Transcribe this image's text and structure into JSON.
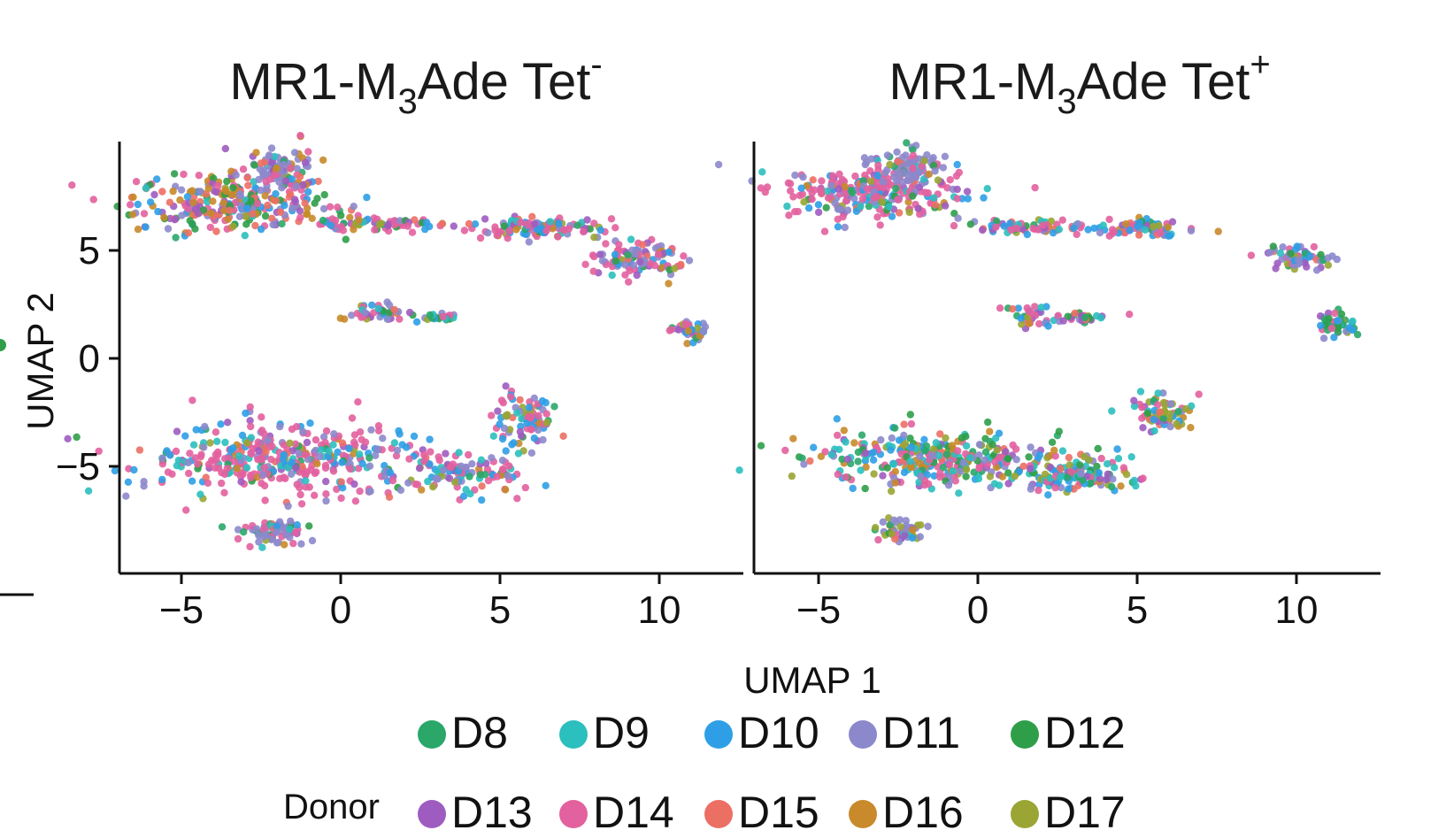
{
  "chart_data": [
    {
      "type": "scatter",
      "title_main": "MR1-M",
      "title_sub": "3",
      "title_rest": "Ade Tet",
      "title_sup": "-",
      "xlabel": "UMAP 1",
      "ylabel": "UMAP 2",
      "xlim": [
        -7,
        12.5
      ],
      "ylim": [
        -9.8,
        10
      ],
      "xticks": [
        -5,
        0,
        5,
        10
      ],
      "xtick_labels": [
        "−5",
        "0",
        "5",
        "10"
      ],
      "yticks": [
        5,
        0,
        -5
      ],
      "ytick_labels": [
        "5",
        "0",
        "−5"
      ],
      "clusters": [
        {
          "name": "top-left blob",
          "x": -3.3,
          "y": 7.2,
          "rx": 2.8,
          "ry": 1.2,
          "n": 95,
          "mix": [
            1,
            3,
            13,
            13,
            13,
            13,
            13,
            13,
            13,
            1
          ]
        },
        {
          "name": "top-left lobe",
          "x": -1.9,
          "y": 8.8,
          "rx": 1.0,
          "ry": 0.9,
          "n": 28,
          "mix": [
            1,
            1,
            1,
            10,
            1,
            3,
            3,
            1,
            3,
            1
          ]
        },
        {
          "name": "thin strand",
          "x": 1.2,
          "y": 6.2,
          "rx": 1.9,
          "ry": 0.3,
          "n": 24,
          "mix": [
            1,
            1,
            3,
            3,
            1,
            3,
            10,
            1,
            1,
            1
          ]
        },
        {
          "name": "upper-right strand",
          "x": 6.1,
          "y": 6.1,
          "rx": 1.8,
          "ry": 0.45,
          "n": 40,
          "mix": [
            1,
            3,
            5,
            5,
            1,
            3,
            10,
            1,
            1,
            1
          ]
        },
        {
          "name": "upper-right tail",
          "x": 9.3,
          "y": 4.6,
          "rx": 1.3,
          "ry": 0.7,
          "n": 34,
          "mix": [
            1,
            1,
            3,
            5,
            1,
            3,
            10,
            1,
            1,
            1
          ]
        },
        {
          "name": "lower-right spur",
          "x": 11.0,
          "y": 1.3,
          "rx": 0.5,
          "ry": 0.5,
          "n": 14,
          "mix": [
            2,
            1,
            3,
            5,
            1,
            3,
            6,
            1,
            1,
            1
          ]
        },
        {
          "name": "mid-left small",
          "x": 1.1,
          "y": 2.1,
          "rx": 0.8,
          "ry": 0.4,
          "n": 14,
          "mix": [
            1,
            3,
            3,
            5,
            1,
            3,
            10,
            1,
            1,
            1
          ]
        },
        {
          "name": "mid strand",
          "x": 3.1,
          "y": 1.9,
          "rx": 0.8,
          "ry": 0.2,
          "n": 8,
          "mix": [
            3,
            1,
            1,
            3,
            3,
            3,
            5,
            1,
            1,
            3
          ]
        },
        {
          "name": "big bottom cluster",
          "x": -2.0,
          "y": -4.7,
          "rx": 3.8,
          "ry": 1.5,
          "n": 130,
          "mix": [
            1,
            5,
            5,
            4,
            1,
            3,
            20,
            1,
            1,
            1
          ]
        },
        {
          "name": "bottom tail",
          "x": 3.6,
          "y": -5.4,
          "rx": 1.9,
          "ry": 0.9,
          "n": 40,
          "mix": [
            1,
            3,
            5,
            3,
            1,
            3,
            12,
            1,
            1,
            1
          ]
        },
        {
          "name": "bottom hook",
          "x": 5.8,
          "y": -2.8,
          "rx": 0.9,
          "ry": 1.1,
          "n": 28,
          "mix": [
            1,
            3,
            5,
            5,
            1,
            3,
            10,
            1,
            1,
            4
          ]
        },
        {
          "name": "bottom small",
          "x": -2.1,
          "y": -8.0,
          "rx": 0.8,
          "ry": 0.6,
          "n": 22,
          "mix": [
            1,
            1,
            3,
            12,
            1,
            3,
            4,
            1,
            1,
            1
          ]
        }
      ]
    },
    {
      "type": "scatter",
      "title_main": "MR1-M",
      "title_sub": "3",
      "title_rest": "Ade Tet",
      "title_sup": "+",
      "xlabel": "UMAP 1",
      "ylabel": "UMAP 2",
      "xlim": [
        -7,
        12.5
      ],
      "ylim": [
        -9.8,
        10
      ],
      "xticks": [
        -5,
        0,
        5,
        10
      ],
      "xtick_labels": [
        "−5",
        "0",
        "5",
        "10"
      ],
      "yticks": [
        5,
        0,
        -5
      ],
      "ytick_labels": [
        "5",
        "0",
        "−5"
      ],
      "clusters": [
        {
          "name": "top-left blob",
          "x": -3.3,
          "y": 7.7,
          "rx": 2.6,
          "ry": 1.1,
          "n": 90,
          "mix": [
            1,
            2,
            3,
            5,
            1,
            3,
            16,
            1,
            1,
            1
          ]
        },
        {
          "name": "top-left lobe",
          "x": -2.1,
          "y": 8.9,
          "rx": 0.9,
          "ry": 0.7,
          "n": 25,
          "mix": [
            1,
            1,
            1,
            12,
            1,
            3,
            3,
            1,
            1,
            1
          ]
        },
        {
          "name": "thin strand",
          "x": 1.5,
          "y": 6.1,
          "rx": 1.7,
          "ry": 0.3,
          "n": 22,
          "mix": [
            1,
            3,
            5,
            3,
            1,
            3,
            8,
            1,
            1,
            1
          ]
        },
        {
          "name": "upper-mid strand",
          "x": 5.0,
          "y": 6.0,
          "rx": 1.4,
          "ry": 0.4,
          "n": 26,
          "mix": [
            1,
            3,
            8,
            3,
            1,
            3,
            6,
            3,
            3,
            1
          ]
        },
        {
          "name": "right small",
          "x": 10.1,
          "y": 4.7,
          "rx": 0.9,
          "ry": 0.5,
          "n": 22,
          "mix": [
            2,
            1,
            3,
            12,
            3,
            3,
            3,
            1,
            1,
            3
          ]
        },
        {
          "name": "far right",
          "x": 11.3,
          "y": 1.5,
          "rx": 0.5,
          "ry": 0.6,
          "n": 16,
          "mix": [
            8,
            3,
            3,
            5,
            3,
            3,
            3,
            1,
            1,
            1
          ]
        },
        {
          "name": "mid-left small",
          "x": 1.7,
          "y": 2.0,
          "rx": 0.6,
          "ry": 0.5,
          "n": 12,
          "mix": [
            1,
            3,
            5,
            3,
            1,
            3,
            10,
            1,
            1,
            1
          ]
        },
        {
          "name": "mid strand",
          "x": 3.3,
          "y": 1.9,
          "rx": 0.7,
          "ry": 0.2,
          "n": 8,
          "mix": [
            3,
            3,
            1,
            1,
            3,
            3,
            5,
            3,
            1,
            1
          ]
        },
        {
          "name": "big bottom cluster",
          "x": -1.3,
          "y": -4.6,
          "rx": 3.6,
          "ry": 1.1,
          "n": 110,
          "mix": [
            6,
            6,
            6,
            5,
            6,
            4,
            10,
            2,
            4,
            4
          ]
        },
        {
          "name": "bottom tail",
          "x": 3.0,
          "y": -5.4,
          "rx": 1.7,
          "ry": 0.8,
          "n": 40,
          "mix": [
            2,
            6,
            6,
            3,
            2,
            3,
            4,
            1,
            1,
            2
          ]
        },
        {
          "name": "bottom hook",
          "x": 5.7,
          "y": -2.6,
          "rx": 0.9,
          "ry": 0.8,
          "n": 24,
          "mix": [
            1,
            3,
            5,
            3,
            1,
            3,
            4,
            1,
            1,
            8
          ]
        },
        {
          "name": "bottom small",
          "x": -2.4,
          "y": -8.0,
          "rx": 0.6,
          "ry": 0.4,
          "n": 16,
          "mix": [
            1,
            1,
            3,
            8,
            1,
            3,
            3,
            1,
            1,
            6
          ]
        }
      ]
    }
  ],
  "legend": {
    "title": "Donor",
    "entries": [
      {
        "label": "D8",
        "color": "#2aa769"
      },
      {
        "label": "D9",
        "color": "#2bbfbe"
      },
      {
        "label": "D10",
        "color": "#2e9fe6"
      },
      {
        "label": "D11",
        "color": "#8c88cc"
      },
      {
        "label": "D12",
        "color": "#2f9e49"
      },
      {
        "label": "D13",
        "color": "#9e5cc0"
      },
      {
        "label": "D14",
        "color": "#e2619e"
      },
      {
        "label": "D15",
        "color": "#ec6f64"
      },
      {
        "label": "D16",
        "color": "#c88a2a"
      },
      {
        "label": "D17",
        "color": "#9aa534"
      }
    ]
  }
}
